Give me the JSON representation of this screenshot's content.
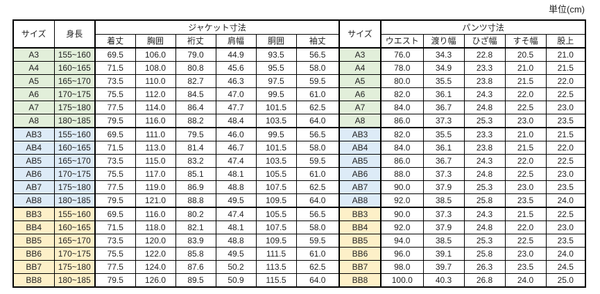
{
  "unit_label": "単位(cm)",
  "colors": {
    "border": "#000000",
    "text": "#1f1f1f",
    "header_bg": "#ffffff",
    "group_colors": [
      "#e2efda",
      "#ddebf7",
      "#fdf0c8"
    ]
  },
  "chart_data": {
    "type": "table",
    "header": {
      "size": "サイズ",
      "height": "身長",
      "jacket_group": "ジャケット寸法",
      "size_middle": "サイズ",
      "pants_group": "パンツ寸法",
      "jacket_cols": [
        "着丈",
        "胸囲",
        "裄丈",
        "肩幅",
        "胴囲",
        "袖丈"
      ],
      "pants_cols": [
        "ウエスト",
        "渡り幅",
        "ひざ幅",
        "すそ幅",
        "股上"
      ]
    },
    "groups": [
      {
        "name": "A",
        "bg": "#e2efda",
        "rows": [
          {
            "size": "A3",
            "height": "155~160",
            "jacket": [
              "69.5",
              "106.0",
              "79.0",
              "44.9",
              "93.5",
              "56.5"
            ],
            "pants": [
              "76.0",
              "34.3",
              "22.8",
              "20.5",
              "21.0"
            ]
          },
          {
            "size": "A4",
            "height": "160~165",
            "jacket": [
              "71.5",
              "108.0",
              "80.8",
              "45.6",
              "95.5",
              "58.0"
            ],
            "pants": [
              "78.0",
              "34.9",
              "23.3",
              "21.0",
              "21.5"
            ]
          },
          {
            "size": "A5",
            "height": "165~170",
            "jacket": [
              "73.5",
              "110.0",
              "82.7",
              "46.3",
              "97.5",
              "59.5"
            ],
            "pants": [
              "80.0",
              "35.5",
              "23.8",
              "21.5",
              "22.0"
            ]
          },
          {
            "size": "A6",
            "height": "170~175",
            "jacket": [
              "75.5",
              "112.0",
              "84.5",
              "47.0",
              "99.5",
              "61.0"
            ],
            "pants": [
              "82.0",
              "36.1",
              "24.3",
              "22.0",
              "22.5"
            ]
          },
          {
            "size": "A7",
            "height": "175~180",
            "jacket": [
              "77.5",
              "114.0",
              "86.4",
              "47.7",
              "101.5",
              "62.5"
            ],
            "pants": [
              "84.0",
              "36.7",
              "24.8",
              "22.5",
              "23.0"
            ]
          },
          {
            "size": "A8",
            "height": "180~185",
            "jacket": [
              "79.5",
              "116.0",
              "88.2",
              "48.4",
              "103.5",
              "64.0"
            ],
            "pants": [
              "86.0",
              "37.3",
              "25.3",
              "23.0",
              "23.5"
            ]
          }
        ]
      },
      {
        "name": "AB",
        "bg": "#ddebf7",
        "rows": [
          {
            "size": "AB3",
            "height": "155~160",
            "jacket": [
              "69.5",
              "111.0",
              "79.5",
              "46.0",
              "99.5",
              "56.5"
            ],
            "pants": [
              "82.0",
              "35.5",
              "23.3",
              "21.0",
              "21.5"
            ]
          },
          {
            "size": "AB4",
            "height": "160~165",
            "jacket": [
              "71.5",
              "113.0",
              "81.4",
              "46.7",
              "101.5",
              "58.0"
            ],
            "pants": [
              "84.0",
              "36.1",
              "23.8",
              "21.5",
              "22.0"
            ]
          },
          {
            "size": "AB5",
            "height": "165~170",
            "jacket": [
              "73.5",
              "115.0",
              "83.2",
              "47.4",
              "103.5",
              "59.5"
            ],
            "pants": [
              "86.0",
              "36.7",
              "24.3",
              "22.0",
              "22.5"
            ]
          },
          {
            "size": "AB6",
            "height": "170~175",
            "jacket": [
              "75.5",
              "117.0",
              "85.1",
              "48.1",
              "105.5",
              "61.0"
            ],
            "pants": [
              "88.0",
              "37.3",
              "24.8",
              "22.5",
              "23.0"
            ]
          },
          {
            "size": "AB7",
            "height": "175~180",
            "jacket": [
              "77.5",
              "119.0",
              "86.9",
              "48.8",
              "107.5",
              "62.5"
            ],
            "pants": [
              "90.0",
              "37.9",
              "25.3",
              "23.0",
              "23.5"
            ]
          },
          {
            "size": "AB8",
            "height": "180~185",
            "jacket": [
              "79.5",
              "121.0",
              "88.8",
              "49.5",
              "109.5",
              "64.0"
            ],
            "pants": [
              "92.0",
              "38.5",
              "25.8",
              "23.5",
              "24.0"
            ]
          }
        ]
      },
      {
        "name": "BB",
        "bg": "#fdf0c8",
        "rows": [
          {
            "size": "BB3",
            "height": "155~160",
            "jacket": [
              "69.5",
              "116.0",
              "80.2",
              "47.4",
              "105.5",
              "56.5"
            ],
            "pants": [
              "90.0",
              "37.3",
              "24.3",
              "21.5",
              "22.5"
            ]
          },
          {
            "size": "BB4",
            "height": "160~165",
            "jacket": [
              "71.5",
              "118.0",
              "82.1",
              "48.1",
              "107.5",
              "58.0"
            ],
            "pants": [
              "92.0",
              "37.9",
              "24.8",
              "22.0",
              "23.0"
            ]
          },
          {
            "size": "BB5",
            "height": "165~170",
            "jacket": [
              "73.5",
              "120.0",
              "83.9",
              "48.8",
              "109.5",
              "59.5"
            ],
            "pants": [
              "94.0",
              "38.5",
              "25.3",
              "22.5",
              "23.5"
            ]
          },
          {
            "size": "BB6",
            "height": "170~175",
            "jacket": [
              "75.5",
              "122.0",
              "85.8",
              "49.5",
              "111.5",
              "61.0"
            ],
            "pants": [
              "96.0",
              "39.1",
              "25.8",
              "23.0",
              "24.0"
            ]
          },
          {
            "size": "BB7",
            "height": "175~180",
            "jacket": [
              "77.5",
              "124.0",
              "87.6",
              "50.2",
              "113.5",
              "62.5"
            ],
            "pants": [
              "98.0",
              "39.7",
              "26.3",
              "23.5",
              "24.5"
            ]
          },
          {
            "size": "BB8",
            "height": "180~185",
            "jacket": [
              "79.5",
              "126.0",
              "89.5",
              "50.9",
              "115.5",
              "64.0"
            ],
            "pants": [
              "100.0",
              "40.3",
              "26.8",
              "24.0",
              "25.0"
            ]
          }
        ]
      }
    ]
  }
}
